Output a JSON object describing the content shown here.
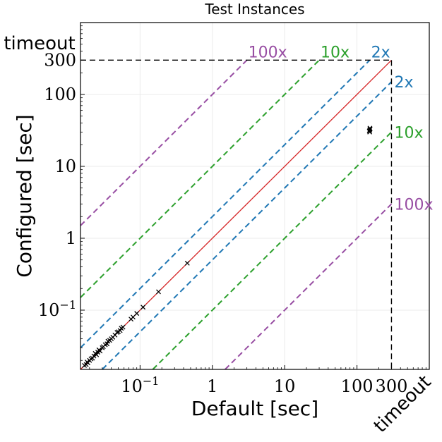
{
  "chart_data": {
    "type": "scatter",
    "title": "Test Instances",
    "xlabel": "Default [sec]",
    "ylabel": "Configured [sec]",
    "scale": "log",
    "xlim": [
      0.015,
      1000
    ],
    "ylim": [
      0.015,
      1000
    ],
    "timeout_value": 300,
    "timeout_label": "timeout",
    "grid": true,
    "x_ticks": [
      {
        "value": 0.1,
        "label": "10^{-1}"
      },
      {
        "value": 1,
        "label": "1"
      },
      {
        "value": 10,
        "label": "10"
      },
      {
        "value": 100,
        "label": "100"
      },
      {
        "value": 300,
        "label": "300"
      }
    ],
    "y_ticks": [
      {
        "value": 0.1,
        "label": "10^{-1}"
      },
      {
        "value": 1,
        "label": "1"
      },
      {
        "value": 10,
        "label": "10"
      },
      {
        "value": 100,
        "label": "100"
      },
      {
        "value": 300,
        "label": "300"
      }
    ],
    "reference_lines": [
      {
        "factor": 1,
        "label": "",
        "color": "#d62728",
        "style": "solid"
      },
      {
        "factor": 2,
        "label": "2x",
        "color": "#1f77b4",
        "style": "dashed"
      },
      {
        "factor": 10,
        "label": "10x",
        "color": "#2ca02c",
        "style": "dashed"
      },
      {
        "factor": 100,
        "label": "100x",
        "color": "#984ea3",
        "style": "dashed"
      }
    ],
    "marker_color": "#000000",
    "points": [
      [
        0.017,
        0.017
      ],
      [
        0.018,
        0.0175
      ],
      [
        0.0185,
        0.019
      ],
      [
        0.019,
        0.0185
      ],
      [
        0.02,
        0.02
      ],
      [
        0.021,
        0.021
      ],
      [
        0.022,
        0.0215
      ],
      [
        0.023,
        0.023
      ],
      [
        0.024,
        0.025
      ],
      [
        0.025,
        0.024
      ],
      [
        0.026,
        0.026
      ],
      [
        0.027,
        0.028
      ],
      [
        0.028,
        0.027
      ],
      [
        0.03,
        0.03
      ],
      [
        0.031,
        0.031
      ],
      [
        0.033,
        0.033
      ],
      [
        0.035,
        0.034
      ],
      [
        0.036,
        0.037
      ],
      [
        0.038,
        0.038
      ],
      [
        0.04,
        0.04
      ],
      [
        0.042,
        0.042
      ],
      [
        0.045,
        0.045
      ],
      [
        0.048,
        0.049
      ],
      [
        0.05,
        0.05
      ],
      [
        0.053,
        0.052
      ],
      [
        0.055,
        0.056
      ],
      [
        0.058,
        0.058
      ],
      [
        0.075,
        0.075
      ],
      [
        0.08,
        0.08
      ],
      [
        0.09,
        0.09
      ],
      [
        0.11,
        0.11
      ],
      [
        0.18,
        0.18
      ],
      [
        0.45,
        0.45
      ],
      [
        150,
        30
      ],
      [
        150,
        32
      ],
      [
        152,
        33
      ],
      [
        148,
        31
      ],
      [
        151,
        34
      ]
    ]
  }
}
